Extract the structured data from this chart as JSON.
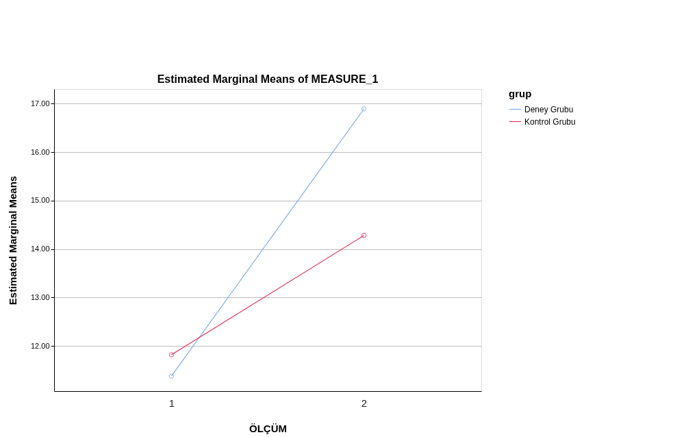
{
  "chart_data": {
    "type": "line",
    "title": "Estimated Marginal Means of MEASURE_1",
    "xlabel": "ÖLÇÜM",
    "ylabel": "Estimated Marginal Means",
    "legend_title": "grup",
    "categories": [
      "1",
      "2"
    ],
    "series": [
      {
        "name": "Deney Grubu",
        "color": "#7eaef0",
        "values": [
          11.38,
          16.89
        ]
      },
      {
        "name": "Kontrol Grubu",
        "color": "#e0325a",
        "values": [
          11.82,
          14.28
        ]
      }
    ],
    "ylim": [
      11.07,
      17.3
    ],
    "yticks": [
      {
        "value": 12,
        "label": "12.00"
      },
      {
        "value": 13,
        "label": "13.00"
      },
      {
        "value": 14,
        "label": "14.00"
      },
      {
        "value": 15,
        "label": "15.00"
      },
      {
        "value": 16,
        "label": "16.00"
      },
      {
        "value": 17,
        "label": "17.00"
      }
    ],
    "grid": "y",
    "legend": "top right",
    "marker": "circle",
    "line_style": "solid"
  }
}
